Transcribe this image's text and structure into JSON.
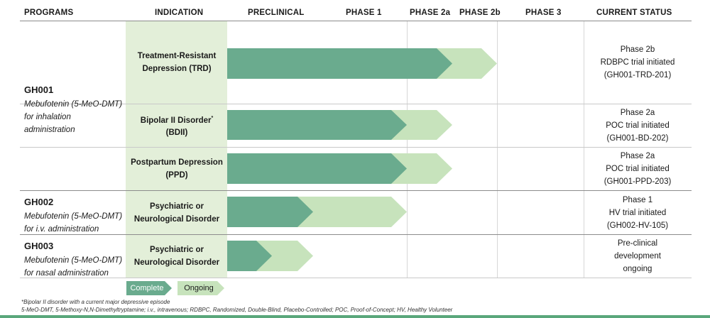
{
  "headers": {
    "programs": "PROGRAMS",
    "indication": "INDICATION",
    "preclinical": "PRECLINICAL",
    "phase1": "PHASE 1",
    "phase2a": "PHASE 2a",
    "phase2b": "PHASE 2b",
    "phase3": "PHASE 3",
    "status": "CURRENT STATUS"
  },
  "programs": [
    {
      "code": "GH001",
      "desc": "Mebufotenin (5-MeO-DMT) for inhalation administration"
    },
    {
      "code": "GH002",
      "desc": "Mebufotenin (5-MeO-DMT) for i.v. administration"
    },
    {
      "code": "GH003",
      "desc": "Mebufotenin (5-MeO-DMT) for nasal administration"
    }
  ],
  "rows": [
    {
      "ind_line1": "Treatment-Resistant",
      "ind_line2": "Depression (TRD)",
      "status": [
        "Phase 2b",
        "RDBPC trial initiated",
        "(GH001-TRD-201)"
      ]
    },
    {
      "ind_line1": "Bipolar II Disorder",
      "ind_sup": "*",
      "ind_line2": "(BDII)",
      "status": [
        "Phase 2a",
        "POC trial initiated",
        "(GH001-BD-202)"
      ]
    },
    {
      "ind_line1": "Postpartum Depression",
      "ind_line2": "(PPD)",
      "status": [
        "Phase 2a",
        "POC trial initiated",
        "(GH001-PPD-203)"
      ]
    },
    {
      "ind_line1": "Psychiatric or",
      "ind_line2": "Neurological Disorder",
      "status": [
        "Phase 1",
        "HV trial initiated",
        "(GH002-HV-105)"
      ]
    },
    {
      "ind_line1": "Psychiatric or",
      "ind_line2": "Neurological Disorder",
      "status": [
        "Pre-clinical",
        "development",
        "ongoing"
      ]
    }
  ],
  "legend": {
    "complete": "Complete",
    "ongoing": "Ongoing"
  },
  "footnotes": {
    "note1": "*Bipolar II disorder with a current major depressive episode",
    "note2": "5-MeO-DMT, 5-Methoxy-N,N-Dimethyltryptamine; i.v., intravenous; RDBPC, Randomized, Double-Blind, Placebo-Controlled; POC, Proof-of-Concept; HV, Healthy Volunteer"
  },
  "colors": {
    "complete": "#6aab8e",
    "ongoing": "#c7e3bc",
    "indication_bg": "#e3efd9"
  },
  "chart_data": {
    "type": "gantt",
    "stages": [
      "PRECLINICAL",
      "PHASE 1",
      "PHASE 2a",
      "PHASE 2b",
      "PHASE 3"
    ],
    "series": [
      {
        "program": "GH001",
        "indication": "Treatment-Resistant Depression (TRD)",
        "complete_through": "PHASE 2a",
        "ongoing": "PHASE 2b"
      },
      {
        "program": "GH001",
        "indication": "Bipolar II Disorder (BDII)",
        "complete_through": "PHASE 1",
        "ongoing": "PHASE 2a"
      },
      {
        "program": "GH001",
        "indication": "Postpartum Depression (PPD)",
        "complete_through": "PHASE 1",
        "ongoing": "PHASE 2a"
      },
      {
        "program": "GH002",
        "indication": "Psychiatric or Neurological Disorder",
        "complete_through": "PRECLINICAL (partial)",
        "ongoing": "PHASE 1"
      },
      {
        "program": "GH003",
        "indication": "Psychiatric or Neurological Disorder",
        "complete_through": "PRECLINICAL (partial)",
        "ongoing": "PRECLINICAL"
      }
    ]
  }
}
